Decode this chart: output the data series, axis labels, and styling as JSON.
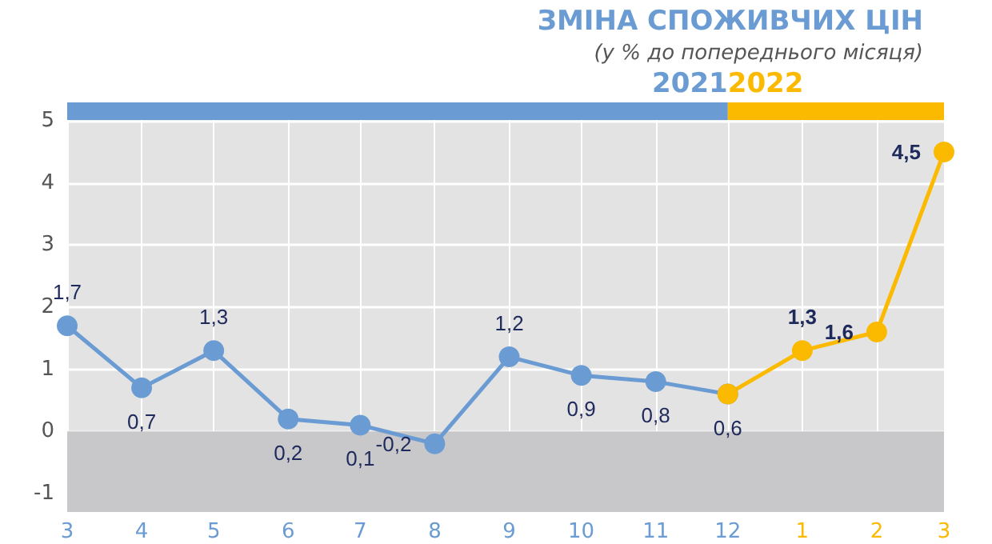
{
  "chart_data": {
    "type": "line",
    "title": "ЗМІНА СПОЖИВЧИХ ЦІН",
    "subtitle": "(у % до попереднього місяця)",
    "series": [
      {
        "color": "#6a9bd3",
        "x": [
          "2021-03",
          "2021-04",
          "2021-05",
          "2021-06",
          "2021-07",
          "2021-08",
          "2021-09",
          "2021-10",
          "2021-11",
          "2021-12"
        ],
        "values": [
          1.7,
          0.7,
          1.3,
          0.2,
          0.1,
          -0.2,
          1.2,
          0.9,
          0.8,
          0.6
        ],
        "value_labels": [
          "1,7",
          "0,7",
          "1,3",
          "0,2",
          "0,1",
          "-0,2",
          "1,2",
          "0,9",
          "0,8",
          "0,6"
        ]
      },
      {
        "color": "#fbb900",
        "x": [
          "2021-12",
          "2022-01",
          "2022-02",
          "2022-03"
        ],
        "values": [
          0.6,
          1.3,
          1.6,
          4.5
        ],
        "value_labels": [
          null,
          "1,3",
          "1,6",
          "4,5"
        ]
      }
    ],
    "xlim": [
      "2021-03",
      "2022-03"
    ],
    "xticks": [
      {
        "value": "2021-03",
        "label": "3"
      },
      {
        "value": "2021-04",
        "label": "4"
      },
      {
        "value": "2021-05",
        "label": "5"
      },
      {
        "value": "2021-06",
        "label": "6"
      },
      {
        "value": "2021-07",
        "label": "7"
      },
      {
        "value": "2021-08",
        "label": "8"
      },
      {
        "value": "2021-09",
        "label": "9"
      },
      {
        "value": "2021-10",
        "label": "10"
      },
      {
        "value": "2021-11",
        "label": "11"
      },
      {
        "value": "2021-12",
        "label": "12"
      },
      {
        "value": "2022-01",
        "label": "1"
      },
      {
        "value": "2022-02",
        "label": "2"
      },
      {
        "value": "2022-03",
        "label": "3"
      }
    ],
    "ylim": [
      -1.3,
      5.3
    ],
    "yticks": [
      -1,
      0,
      1,
      2,
      3,
      4,
      5
    ],
    "bands": [
      {
        "axis": "x",
        "from": "2021-03",
        "to": "2021-12",
        "label": "2021",
        "color": "#6a9bd3"
      },
      {
        "axis": "x",
        "from": "2021-12",
        "to": "2022-03",
        "label": "2022",
        "color": "#fbb900"
      },
      {
        "axis": "y",
        "from": -1.3,
        "to": 0,
        "color": "#c8c8ca"
      }
    ],
    "grid": true,
    "marker": "circle",
    "line_style": "solid"
  }
}
